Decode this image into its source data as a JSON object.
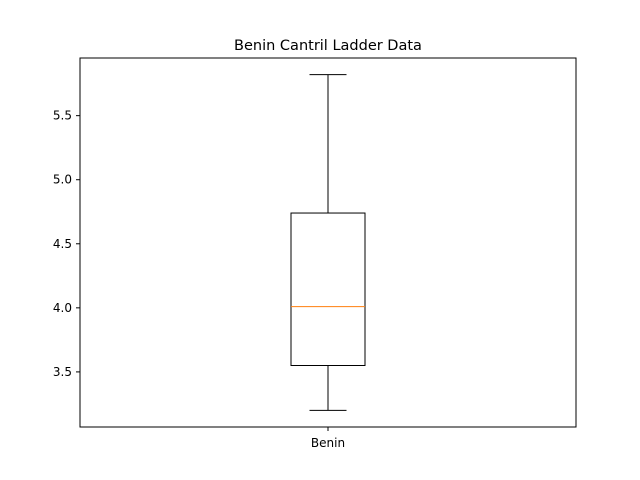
{
  "chart_data": {
    "type": "box",
    "title": "Benin Cantril Ladder Data",
    "xlabel": "",
    "ylabel": "",
    "categories": [
      "Benin"
    ],
    "boxes": [
      {
        "name": "Benin",
        "whisker_low": 3.2,
        "q1": 3.55,
        "median": 4.01,
        "q3": 4.74,
        "whisker_high": 5.82
      }
    ],
    "ylim": [
      3.07,
      5.95
    ],
    "yticks": [
      3.5,
      4.0,
      4.5,
      5.0,
      5.5
    ],
    "ytick_labels": [
      "3.5",
      "4.0",
      "4.5",
      "5.0",
      "5.5"
    ],
    "grid": false,
    "colors": {
      "box": "#000000",
      "median": "#ff7f0e",
      "whisker": "#000000"
    }
  }
}
